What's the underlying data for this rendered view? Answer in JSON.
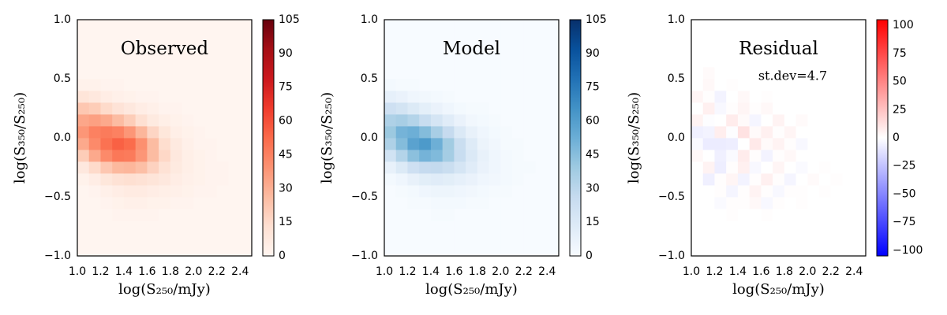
{
  "chart_data": [
    {
      "type": "heatmap",
      "title": "Observed",
      "xlabel": "log(S₂₅₀/mJy)",
      "ylabel": "log(S₃₅₀/S₂₅₀)",
      "colors": [
        "#fff5f0",
        "#fee0d2",
        "#fcbba1",
        "#fc9272",
        "#fb6a4a",
        "#ef3b2c",
        "#cb181d",
        "#a50f15",
        "#67000d"
      ],
      "clim": [
        0,
        105
      ],
      "cticks": [
        0,
        15,
        30,
        45,
        60,
        75,
        90,
        105
      ],
      "xlim": [
        1,
        2.5
      ],
      "ylim": [
        -1,
        1
      ],
      "xticks": [
        {
          "value": 1,
          "label": "1.0"
        },
        1.2,
        1.4,
        1.6,
        1.8,
        {
          "value": 2,
          "label": "2.0"
        },
        2.2,
        2.4
      ],
      "yticks": [
        {
          "value": -1,
          "label": "−1.0"
        },
        {
          "value": -0.5,
          "label": "−0.5"
        },
        {
          "value": 0,
          "label": "0.0"
        },
        0.5,
        {
          "value": 1,
          "label": "1.0"
        }
      ],
      "xbins": [
        1,
        1.1,
        1.2,
        1.3,
        1.4,
        1.5,
        1.6,
        1.7,
        1.8,
        1.9,
        2,
        2.1,
        2.2,
        2.3,
        2.4,
        2.5
      ],
      "ybins": [
        -1,
        -0.9,
        -0.8,
        -0.7,
        -0.6,
        -0.5,
        -0.4,
        -0.3,
        -0.2,
        -0.1,
        0,
        0.1,
        0.2,
        0.3,
        0.4,
        0.5,
        0.6,
        0.7,
        0.8,
        0.9,
        1
      ],
      "z": [
        [
          0,
          0,
          0,
          0,
          0,
          0,
          0,
          0,
          0,
          0,
          0,
          0,
          0,
          0,
          0
        ],
        [
          0,
          0,
          0,
          0,
          0,
          0,
          0,
          0,
          0,
          0,
          0,
          0,
          0,
          0,
          0
        ],
        [
          0,
          0,
          0,
          0,
          0,
          0,
          0,
          0,
          0,
          0,
          0,
          0,
          0,
          0,
          0
        ],
        [
          0,
          0,
          0,
          1,
          1,
          1,
          1,
          0,
          0,
          0,
          0,
          0,
          0,
          0,
          0
        ],
        [
          0,
          0,
          1,
          2,
          3,
          3,
          2,
          2,
          1,
          1,
          0,
          0,
          0,
          0,
          0
        ],
        [
          0,
          1,
          3,
          5,
          6,
          6,
          5,
          4,
          3,
          2,
          1,
          1,
          0,
          0,
          0
        ],
        [
          2,
          5,
          9,
          12,
          13,
          12,
          10,
          8,
          5,
          3,
          2,
          1,
          1,
          0,
          0
        ],
        [
          8,
          15,
          22,
          27,
          28,
          25,
          18,
          12,
          7,
          4,
          2,
          1,
          1,
          0,
          0
        ],
        [
          20,
          32,
          42,
          48,
          47,
          38,
          26,
          16,
          8,
          4,
          2,
          1,
          0,
          0,
          0
        ],
        [
          32,
          42,
          50,
          55,
          52,
          40,
          26,
          14,
          7,
          3,
          1,
          1,
          0,
          0,
          0
        ],
        [
          38,
          45,
          47,
          45,
          38,
          28,
          17,
          9,
          4,
          2,
          1,
          0,
          0,
          0,
          0
        ],
        [
          33,
          35,
          32,
          26,
          20,
          13,
          7,
          4,
          2,
          1,
          0,
          0,
          0,
          0,
          0
        ],
        [
          22,
          20,
          15,
          11,
          8,
          5,
          3,
          1,
          1,
          0,
          0,
          0,
          0,
          0,
          0
        ],
        [
          10,
          8,
          5,
          3,
          2,
          1,
          1,
          0,
          0,
          0,
          0,
          0,
          0,
          0,
          0
        ],
        [
          2,
          2,
          1,
          1,
          0,
          0,
          0,
          0,
          0,
          0,
          0,
          0,
          0,
          0,
          0
        ],
        [
          0,
          0,
          0,
          0,
          0,
          0,
          0,
          0,
          0,
          0,
          0,
          0,
          0,
          0,
          0
        ],
        [
          0,
          0,
          0,
          0,
          0,
          0,
          0,
          0,
          0,
          0,
          0,
          0,
          0,
          0,
          0
        ],
        [
          0,
          0,
          0,
          0,
          0,
          0,
          0,
          0,
          0,
          0,
          0,
          0,
          0,
          0,
          0
        ],
        [
          0,
          0,
          0,
          0,
          0,
          0,
          0,
          0,
          0,
          0,
          0,
          0,
          0,
          0,
          0
        ],
        [
          0,
          0,
          0,
          0,
          0,
          0,
          0,
          0,
          0,
          0,
          0,
          0,
          0,
          0,
          0
        ]
      ]
    },
    {
      "type": "heatmap",
      "title": "Model",
      "xlabel": "log(S₂₅₀/mJy)",
      "ylabel": "log(S₃₅₀/S₂₅₀)",
      "colors": [
        "#f7fbff",
        "#deebf7",
        "#c6dbef",
        "#9ecae1",
        "#6baed6",
        "#4292c6",
        "#2171b5",
        "#08519c",
        "#08306b"
      ],
      "clim": [
        0,
        105
      ],
      "cticks": [
        0,
        15,
        30,
        45,
        60,
        75,
        90,
        105
      ],
      "xlim": [
        1,
        2.5
      ],
      "ylim": [
        -1,
        1
      ],
      "xticks": [
        {
          "value": 1,
          "label": "1.0"
        },
        1.2,
        1.4,
        1.6,
        1.8,
        {
          "value": 2,
          "label": "2.0"
        },
        2.2,
        2.4
      ],
      "yticks": [
        {
          "value": -1,
          "label": "−1.0"
        },
        {
          "value": -0.5,
          "label": "−0.5"
        },
        {
          "value": 0,
          "label": "0.0"
        },
        0.5,
        {
          "value": 1,
          "label": "1.0"
        }
      ],
      "xbins": [
        1,
        1.1,
        1.2,
        1.3,
        1.4,
        1.5,
        1.6,
        1.7,
        1.8,
        1.9,
        2,
        2.1,
        2.2,
        2.3,
        2.4,
        2.5
      ],
      "ybins": [
        -1,
        -0.9,
        -0.8,
        -0.7,
        -0.6,
        -0.5,
        -0.4,
        -0.3,
        -0.2,
        -0.1,
        0,
        0.1,
        0.2,
        0.3,
        0.4,
        0.5,
        0.6,
        0.7,
        0.8,
        0.9,
        1
      ],
      "z": [
        [
          0,
          0,
          0,
          0,
          0,
          0,
          0,
          0,
          0,
          0,
          0,
          0,
          0,
          0,
          0
        ],
        [
          0,
          0,
          0,
          0,
          0,
          0,
          0,
          0,
          0,
          0,
          0,
          0,
          0,
          0,
          0
        ],
        [
          0,
          0,
          0,
          0,
          0,
          0,
          0,
          0,
          0,
          0,
          0,
          0,
          0,
          0,
          0
        ],
        [
          0,
          0,
          0,
          0,
          1,
          1,
          0,
          0,
          0,
          0,
          0,
          0,
          0,
          0,
          0
        ],
        [
          0,
          0,
          1,
          1,
          2,
          2,
          2,
          1,
          1,
          0,
          0,
          0,
          0,
          0,
          0
        ],
        [
          0,
          1,
          2,
          4,
          5,
          5,
          4,
          3,
          2,
          1,
          1,
          0,
          0,
          0,
          0
        ],
        [
          2,
          4,
          8,
          11,
          12,
          11,
          9,
          7,
          4,
          3,
          2,
          1,
          0,
          0,
          0
        ],
        [
          8,
          14,
          22,
          26,
          27,
          24,
          18,
          12,
          7,
          4,
          2,
          1,
          1,
          0,
          0
        ],
        [
          20,
          32,
          44,
          50,
          47,
          37,
          25,
          15,
          8,
          4,
          2,
          1,
          0,
          0,
          0
        ],
        [
          34,
          46,
          58,
          62,
          52,
          38,
          24,
          13,
          6,
          3,
          1,
          1,
          0,
          0,
          0
        ],
        [
          40,
          50,
          52,
          46,
          36,
          26,
          15,
          8,
          4,
          2,
          1,
          0,
          0,
          0,
          0
        ],
        [
          34,
          36,
          32,
          25,
          18,
          12,
          7,
          3,
          2,
          1,
          0,
          0,
          0,
          0,
          0
        ],
        [
          22,
          19,
          14,
          10,
          7,
          4,
          2,
          1,
          1,
          0,
          0,
          0,
          0,
          0,
          0
        ],
        [
          9,
          7,
          4,
          3,
          2,
          1,
          0,
          0,
          0,
          0,
          0,
          0,
          0,
          0,
          0
        ],
        [
          2,
          1,
          1,
          0,
          0,
          0,
          0,
          0,
          0,
          0,
          0,
          0,
          0,
          0,
          0
        ],
        [
          0,
          0,
          0,
          0,
          0,
          0,
          0,
          0,
          0,
          0,
          0,
          0,
          0,
          0,
          0
        ],
        [
          0,
          0,
          0,
          0,
          0,
          0,
          0,
          0,
          0,
          0,
          0,
          0,
          0,
          0,
          0
        ],
        [
          0,
          0,
          0,
          0,
          0,
          0,
          0,
          0,
          0,
          0,
          0,
          0,
          0,
          0,
          0
        ],
        [
          0,
          0,
          0,
          0,
          0,
          0,
          0,
          0,
          0,
          0,
          0,
          0,
          0,
          0,
          0
        ],
        [
          0,
          0,
          0,
          0,
          0,
          0,
          0,
          0,
          0,
          0,
          0,
          0,
          0,
          0,
          0
        ]
      ]
    },
    {
      "type": "heatmap",
      "title": "Residual",
      "annotation": "st.dev=4.7",
      "xlabel": "log(S₂₅₀/mJy)",
      "ylabel": "log(S₃₅₀/S₂₅₀)",
      "colors": [
        "#0000ff",
        "#ffffff",
        "#ff0000"
      ],
      "clim": [
        -105,
        105
      ],
      "cticks": [
        {
          "value": -100,
          "label": "−100"
        },
        {
          "value": -75,
          "label": "−75"
        },
        {
          "value": -50,
          "label": "−50"
        },
        {
          "value": -25,
          "label": "−25"
        },
        0,
        25,
        50,
        75,
        100
      ],
      "xlim": [
        1,
        2.5
      ],
      "ylim": [
        -1,
        1
      ],
      "xticks": [
        {
          "value": 1,
          "label": "1.0"
        },
        1.2,
        1.4,
        1.6,
        1.8,
        {
          "value": 2,
          "label": "2.0"
        },
        2.2,
        2.4
      ],
      "yticks": [
        {
          "value": -1,
          "label": "−1.0"
        },
        {
          "value": -0.5,
          "label": "−0.5"
        },
        {
          "value": 0,
          "label": "0.0"
        },
        0.5,
        {
          "value": 1,
          "label": "1.0"
        }
      ],
      "xbins": [
        1,
        1.1,
        1.2,
        1.3,
        1.4,
        1.5,
        1.6,
        1.7,
        1.8,
        1.9,
        2,
        2.1,
        2.2,
        2.3,
        2.4,
        2.5
      ],
      "ybins": [
        -1,
        -0.9,
        -0.8,
        -0.7,
        -0.6,
        -0.5,
        -0.4,
        -0.3,
        -0.2,
        -0.1,
        0,
        0.1,
        0.2,
        0.3,
        0.4,
        0.5,
        0.6,
        0.7,
        0.8,
        0.9,
        1
      ],
      "z": [
        [
          0,
          0,
          0,
          0,
          0,
          0,
          0,
          0,
          0,
          0,
          0,
          0,
          0,
          0,
          0
        ],
        [
          0,
          0,
          0,
          0,
          0,
          0,
          0,
          0,
          0,
          0,
          0,
          0,
          0,
          0,
          0
        ],
        [
          0,
          0,
          0,
          0,
          0,
          0,
          0,
          0,
          0,
          0,
          0,
          0,
          0,
          0,
          0
        ],
        [
          0,
          0,
          0,
          1,
          0,
          0,
          1,
          0,
          0,
          0,
          0,
          0,
          0,
          0,
          0
        ],
        [
          0,
          0,
          -2,
          1,
          1,
          3,
          -3,
          1,
          0,
          1,
          0,
          0,
          0,
          0,
          0
        ],
        [
          0,
          0,
          1,
          -4,
          1,
          5,
          1,
          -3,
          1,
          1,
          0,
          1,
          0,
          0,
          0
        ],
        [
          0,
          -6,
          1,
          4,
          -5,
          1,
          6,
          1,
          -4,
          0,
          2,
          0,
          1,
          0,
          0
        ],
        [
          0,
          5,
          -7,
          1,
          6,
          -3,
          0,
          4,
          0,
          -2,
          0,
          1,
          0,
          0,
          0
        ],
        [
          3,
          0,
          -6,
          -2,
          8,
          1,
          -5,
          1,
          3,
          0,
          0,
          0,
          0,
          0,
          0
        ],
        [
          -2,
          -8,
          -8,
          -7,
          0,
          9,
          2,
          5,
          1,
          -3,
          0,
          0,
          0,
          0,
          0
        ],
        [
          -6,
          -5,
          7,
          -1,
          12,
          2,
          6,
          1,
          4,
          0,
          0,
          0,
          0,
          0,
          0
        ],
        [
          5,
          -1,
          0,
          8,
          2,
          -4,
          0,
          5,
          0,
          2,
          0,
          0,
          0,
          0,
          0
        ],
        [
          0,
          6,
          -3,
          1,
          4,
          1,
          3,
          0,
          0,
          0,
          0,
          0,
          0,
          0,
          0
        ],
        [
          4,
          1,
          -5,
          0,
          3,
          0,
          1,
          0,
          0,
          0,
          0,
          0,
          0,
          0,
          0
        ],
        [
          0,
          3,
          0,
          1,
          0,
          0,
          0,
          0,
          0,
          0,
          0,
          0,
          0,
          0,
          0
        ],
        [
          0,
          2,
          0,
          0,
          0,
          0,
          0,
          0,
          0,
          0,
          0,
          0,
          0,
          0,
          0
        ],
        [
          0,
          0,
          0,
          0,
          0,
          0,
          0,
          0,
          0,
          0,
          0,
          0,
          0,
          0,
          0
        ],
        [
          0,
          0,
          0,
          0,
          0,
          0,
          0,
          0,
          0,
          0,
          0,
          0,
          0,
          0,
          0
        ],
        [
          0,
          0,
          0,
          0,
          0,
          0,
          0,
          0,
          0,
          0,
          0,
          0,
          0,
          0,
          0
        ],
        [
          0,
          0,
          0,
          0,
          0,
          0,
          0,
          0,
          0,
          0,
          0,
          0,
          0,
          0,
          0
        ]
      ]
    }
  ]
}
